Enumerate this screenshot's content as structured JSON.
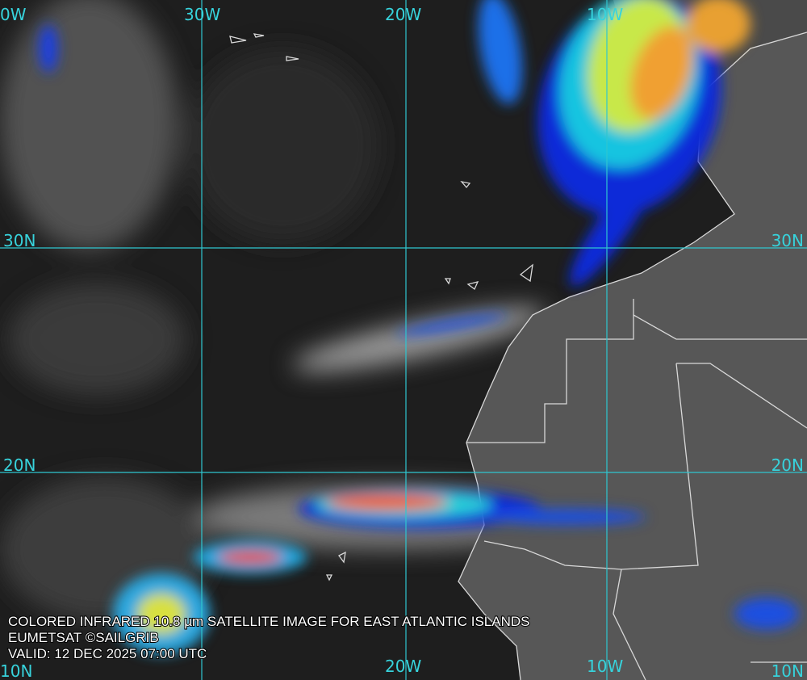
{
  "grid_labels": {
    "top": [
      "0W",
      "30W",
      "20W",
      "10W"
    ],
    "left": [
      "30N",
      "20N",
      "10N"
    ],
    "right": [
      "30N",
      "20N",
      "10N"
    ],
    "bottom": [
      "20W",
      "10W"
    ]
  },
  "caption": [
    "COLORED INFRARED 10.8 µm SATELLITE IMAGE FOR EAST ATLANTIC ISLANDS",
    "EUMETSAT ©SAILGRIB",
    "VALID:  12 DEC 2025 07:00 UTC"
  ]
}
